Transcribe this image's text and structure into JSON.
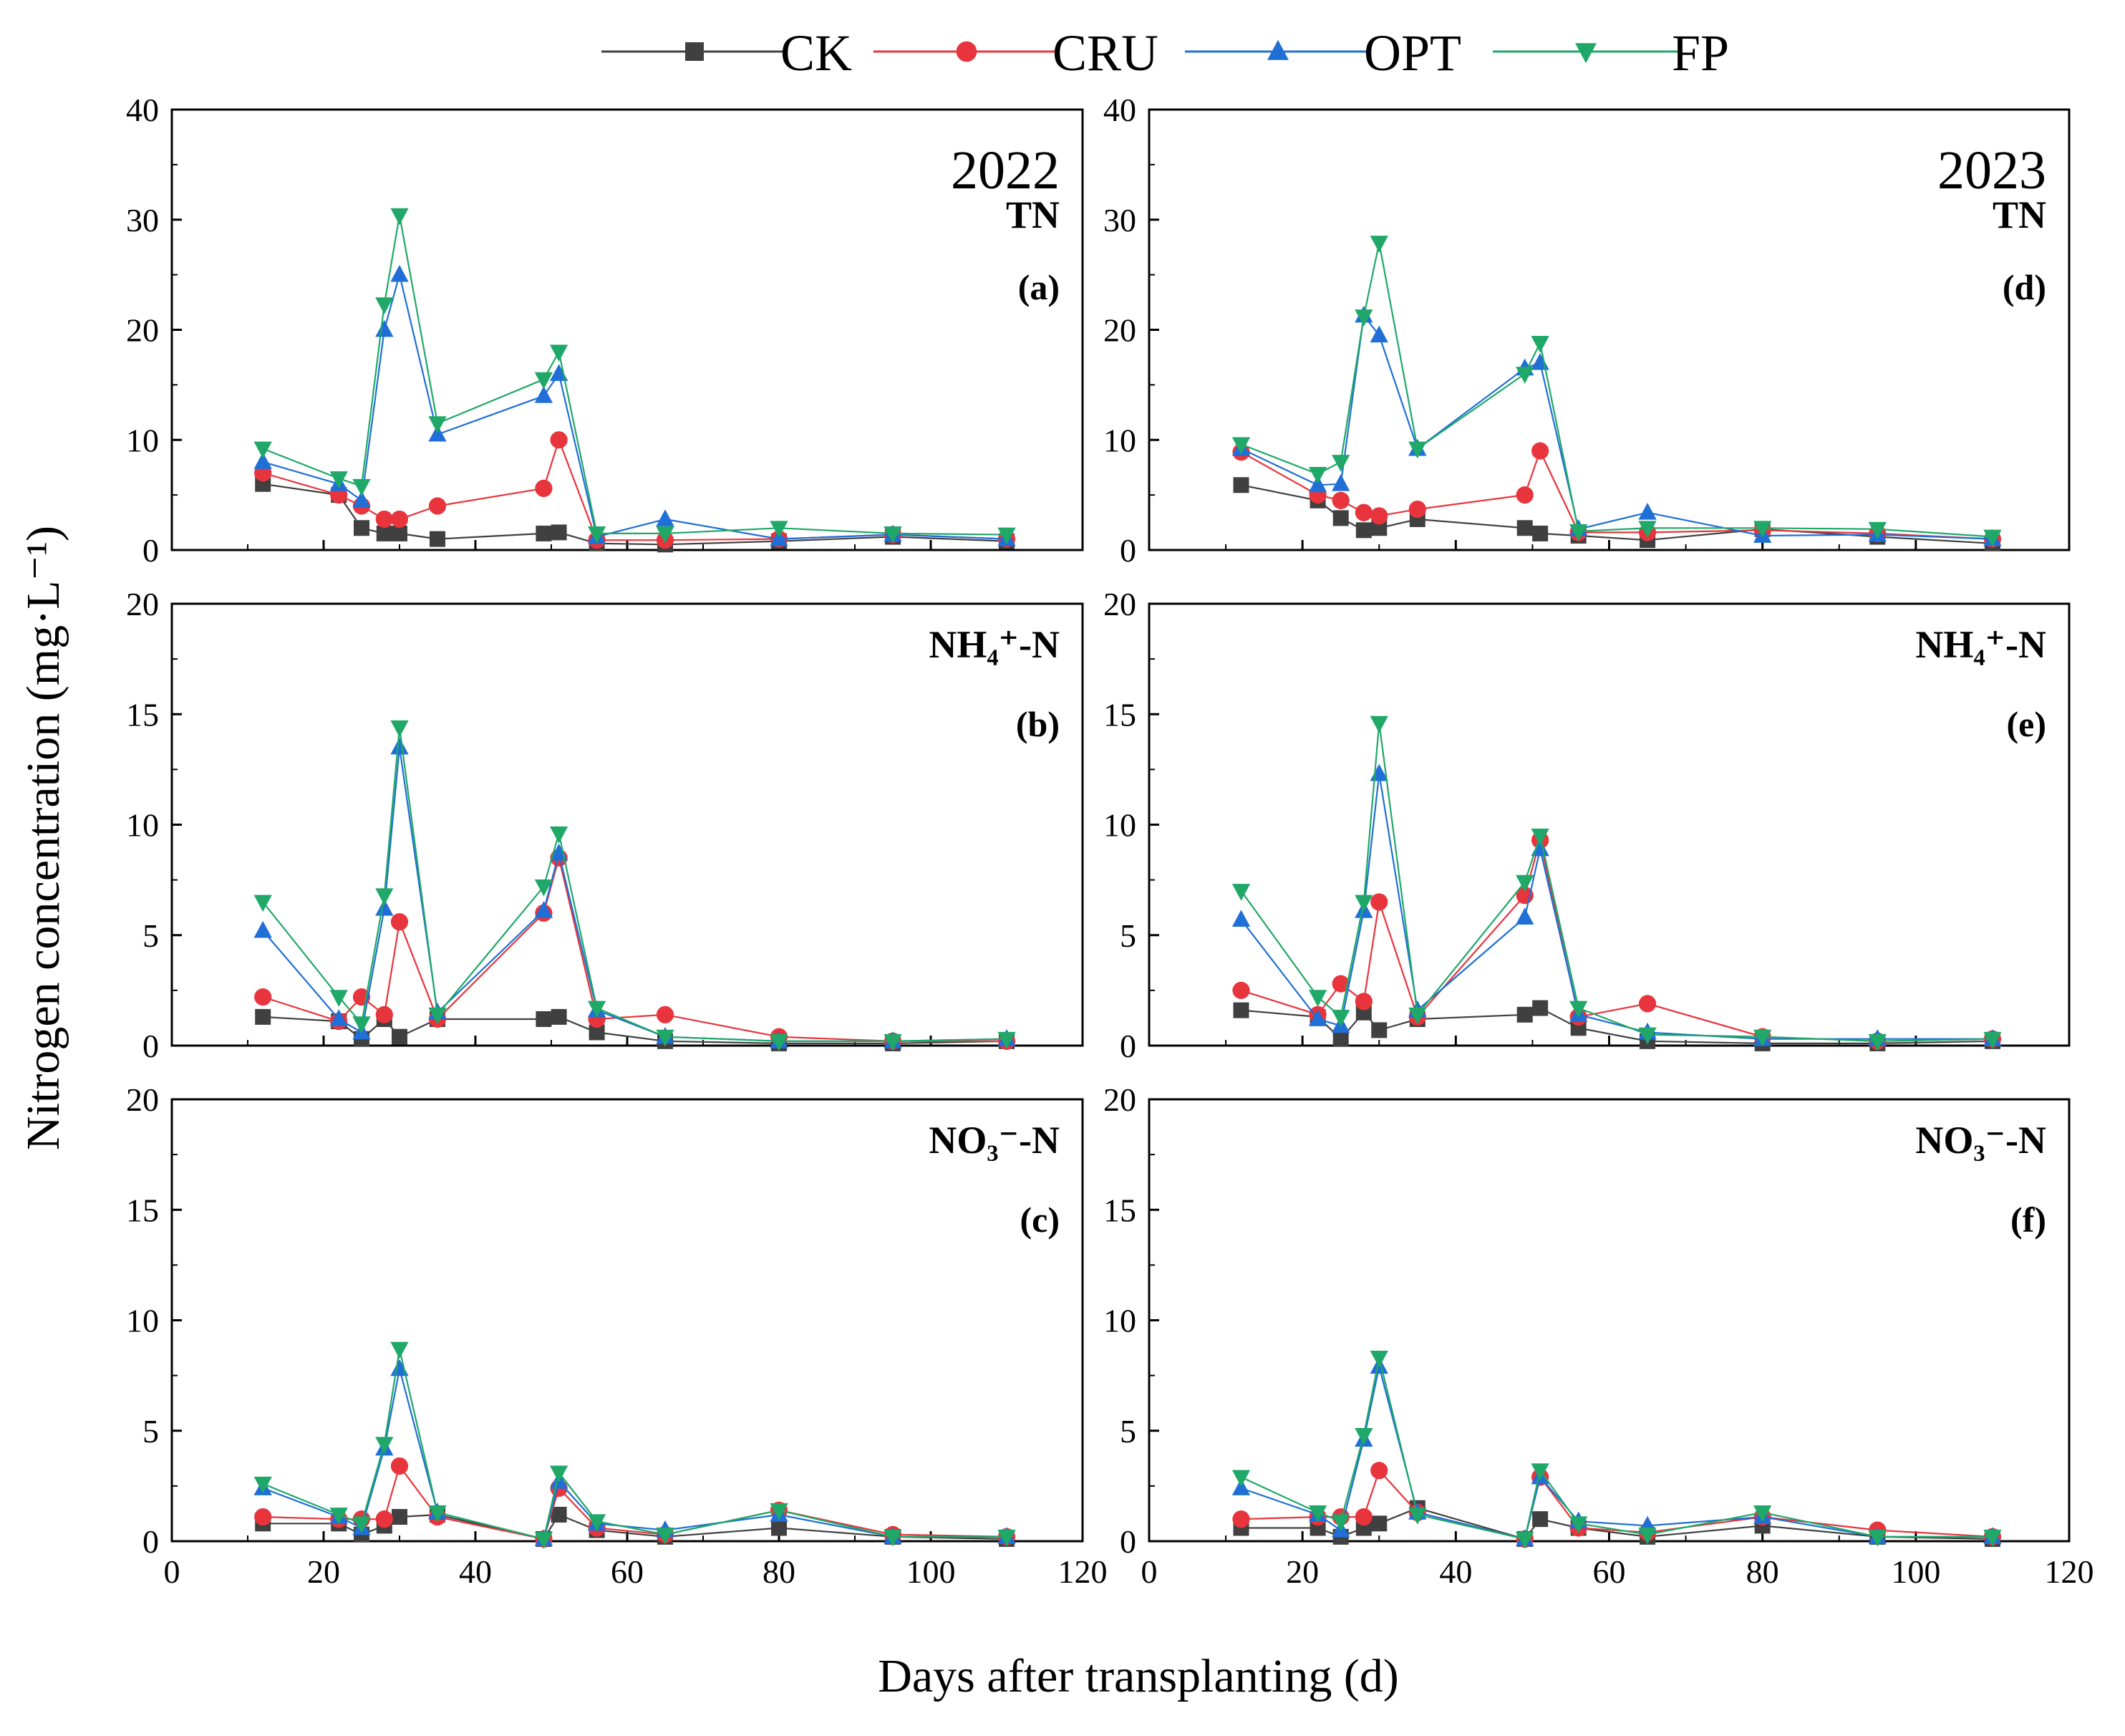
{
  "chart_data": {
    "type": "line",
    "xlabel": "Days after transplanting (d)",
    "ylabel": "Nitrogen concentration (mg·L⁻¹)",
    "xlim": [
      0,
      120
    ],
    "xticks": [
      "0",
      "20",
      "40",
      "60",
      "80",
      "100",
      "120"
    ],
    "legend": {
      "position": "top",
      "entries": [
        {
          "name": "CK",
          "color": "#404040",
          "marker": "square"
        },
        {
          "name": "CRU",
          "color": "#e8343c",
          "marker": "circle"
        },
        {
          "name": "OPT",
          "color": "#1f6fd6",
          "marker": "triangle-up"
        },
        {
          "name": "FP",
          "color": "#1fa868",
          "marker": "triangle-down"
        }
      ]
    },
    "x": [
      12,
      22,
      25,
      28,
      30,
      35,
      49,
      51,
      56,
      65,
      80,
      95,
      110
    ],
    "panels": [
      {
        "id": "a",
        "panel_label": "(a)",
        "year": "2022",
        "variable": "TN",
        "ylim": [
          0,
          40
        ],
        "yticks": [
          "0",
          "10",
          "20",
          "30",
          "40"
        ],
        "series": [
          {
            "name": "CK",
            "values": [
              6.0,
              5.0,
              2.0,
              1.5,
              1.5,
              1.0,
              1.5,
              1.6,
              0.6,
              0.5,
              0.8,
              1.2,
              0.8
            ]
          },
          {
            "name": "CRU",
            "values": [
              7.0,
              5.0,
              4.0,
              2.8,
              2.8,
              4.0,
              5.6,
              10.0,
              0.9,
              0.9,
              1.0,
              1.4,
              1.0
            ]
          },
          {
            "name": "OPT",
            "values": [
              8.0,
              6.0,
              4.5,
              20.0,
              25.0,
              10.5,
              14.0,
              16.0,
              1.2,
              2.8,
              1.0,
              1.4,
              1.0
            ]
          },
          {
            "name": "FP",
            "values": [
              9.2,
              6.5,
              5.8,
              22.3,
              30.4,
              11.5,
              15.5,
              18.0,
              1.5,
              1.5,
              2.0,
              1.5,
              1.4
            ]
          }
        ]
      },
      {
        "id": "b",
        "panel_label": "(b)",
        "year": "",
        "variable": "NH₄⁺-N",
        "ylim": [
          0,
          20
        ],
        "yticks": [
          "0",
          "5",
          "10",
          "15",
          "20"
        ],
        "series": [
          {
            "name": "CK",
            "values": [
              1.3,
              1.1,
              0.3,
              1.2,
              0.4,
              1.2,
              1.2,
              1.3,
              0.6,
              0.2,
              0.1,
              0.1,
              0.2
            ]
          },
          {
            "name": "CRU",
            "values": [
              2.2,
              1.1,
              2.2,
              1.4,
              5.6,
              1.2,
              6.0,
              8.5,
              1.2,
              1.4,
              0.4,
              0.2,
              0.2
            ]
          },
          {
            "name": "OPT",
            "values": [
              5.2,
              1.2,
              0.6,
              6.2,
              13.5,
              1.5,
              6.1,
              8.7,
              1.6,
              0.4,
              0.2,
              0.2,
              0.3
            ]
          },
          {
            "name": "FP",
            "values": [
              6.5,
              2.2,
              1.0,
              6.8,
              14.4,
              1.4,
              7.2,
              9.6,
              1.7,
              0.4,
              0.2,
              0.2,
              0.3
            ]
          }
        ]
      },
      {
        "id": "c",
        "panel_label": "(c)",
        "year": "",
        "variable": "NO₃⁻-N",
        "ylim": [
          0,
          20
        ],
        "yticks": [
          "0",
          "5",
          "10",
          "15",
          "20"
        ],
        "series": [
          {
            "name": "CK",
            "values": [
              0.8,
              0.8,
              0.3,
              0.7,
              1.1,
              1.2,
              0.1,
              1.2,
              0.5,
              0.2,
              0.6,
              0.2,
              0.1
            ]
          },
          {
            "name": "CRU",
            "values": [
              1.1,
              1.0,
              1.0,
              1.0,
              3.4,
              1.1,
              0.1,
              2.4,
              0.6,
              0.3,
              1.4,
              0.3,
              0.2
            ]
          },
          {
            "name": "OPT",
            "values": [
              2.4,
              1.1,
              0.6,
              4.2,
              7.8,
              1.3,
              0.1,
              2.7,
              0.8,
              0.5,
              1.2,
              0.2,
              0.2
            ]
          },
          {
            "name": "FP",
            "values": [
              2.6,
              1.2,
              0.8,
              4.4,
              8.7,
              1.3,
              0.1,
              3.1,
              0.9,
              0.3,
              1.4,
              0.2,
              0.2
            ]
          }
        ]
      },
      {
        "id": "d",
        "panel_label": "(d)",
        "year": "2023",
        "variable": "TN",
        "ylim": [
          0,
          40
        ],
        "yticks": [
          "0",
          "10",
          "20",
          "30",
          "40"
        ],
        "series": [
          {
            "name": "CK",
            "values": [
              5.9,
              4.5,
              2.9,
              1.8,
              2.0,
              2.8,
              2.0,
              1.5,
              1.3,
              0.9,
              1.9,
              1.2,
              0.6
            ]
          },
          {
            "name": "CRU",
            "values": [
              8.9,
              5.0,
              4.5,
              3.4,
              3.1,
              3.7,
              5.0,
              9.0,
              1.6,
              1.6,
              1.8,
              1.5,
              1.0
            ]
          },
          {
            "name": "OPT",
            "values": [
              9.2,
              5.9,
              6.0,
              21.3,
              19.5,
              9.2,
              16.5,
              17.0,
              1.9,
              3.4,
              1.3,
              1.4,
              1.0
            ]
          },
          {
            "name": "FP",
            "values": [
              9.6,
              6.9,
              8.0,
              21.2,
              27.9,
              9.2,
              16.0,
              18.8,
              1.7,
              2.0,
              2.0,
              1.9,
              1.2
            ]
          }
        ]
      },
      {
        "id": "e",
        "panel_label": "(e)",
        "year": "",
        "variable": "NH₄⁺-N",
        "ylim": [
          0,
          20
        ],
        "yticks": [
          "0",
          "5",
          "10",
          "15",
          "20"
        ],
        "series": [
          {
            "name": "CK",
            "values": [
              1.6,
              1.3,
              0.3,
              1.5,
              0.7,
              1.2,
              1.4,
              1.7,
              0.8,
              0.2,
              0.1,
              0.1,
              0.2
            ]
          },
          {
            "name": "CRU",
            "values": [
              2.5,
              1.4,
              2.8,
              2.0,
              6.5,
              1.3,
              6.8,
              9.3,
              1.3,
              1.9,
              0.4,
              0.2,
              0.3
            ]
          },
          {
            "name": "OPT",
            "values": [
              5.7,
              1.2,
              0.9,
              6.1,
              12.3,
              1.6,
              5.8,
              8.9,
              1.4,
              0.6,
              0.3,
              0.3,
              0.3
            ]
          },
          {
            "name": "FP",
            "values": [
              7.0,
              2.2,
              1.3,
              6.5,
              14.6,
              1.4,
              7.4,
              9.5,
              1.7,
              0.5,
              0.4,
              0.2,
              0.3
            ]
          }
        ]
      },
      {
        "id": "f",
        "panel_label": "(f)",
        "year": "",
        "variable": "NO₃⁻-N",
        "ylim": [
          0,
          20
        ],
        "yticks": [
          "0",
          "5",
          "10",
          "15",
          "20"
        ],
        "series": [
          {
            "name": "CK",
            "values": [
              0.6,
              0.6,
              0.2,
              0.6,
              0.8,
              1.5,
              0.1,
              1.0,
              0.6,
              0.2,
              0.7,
              0.2,
              0.1
            ]
          },
          {
            "name": "CRU",
            "values": [
              1.0,
              1.1,
              1.1,
              1.1,
              3.2,
              1.3,
              0.1,
              2.9,
              0.6,
              0.4,
              1.1,
              0.5,
              0.2
            ]
          },
          {
            "name": "OPT",
            "values": [
              2.4,
              1.2,
              0.5,
              4.6,
              7.9,
              1.3,
              0.1,
              2.9,
              0.9,
              0.7,
              1.1,
              0.2,
              0.2
            ]
          },
          {
            "name": "FP",
            "values": [
              2.9,
              1.3,
              0.9,
              4.8,
              8.3,
              1.2,
              0.1,
              3.2,
              0.8,
              0.3,
              1.3,
              0.2,
              0.2
            ]
          }
        ]
      }
    ]
  }
}
